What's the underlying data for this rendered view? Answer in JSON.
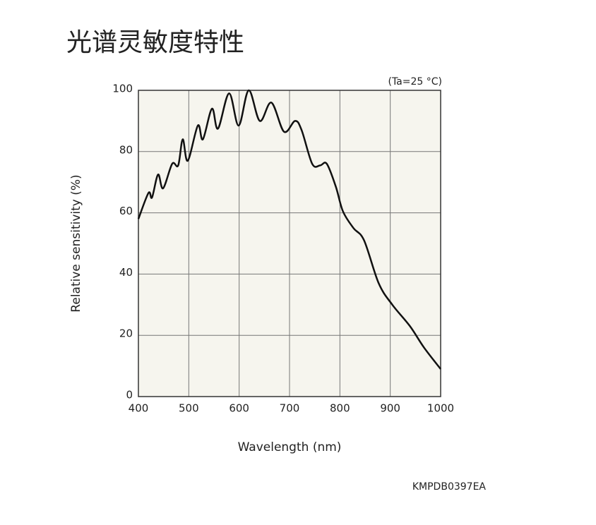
{
  "chart_data": {
    "type": "line",
    "title": "光谱灵敏度特性",
    "annotation": "(Ta=25 °C)",
    "code": "KMPDB0397EA",
    "xlabel": "Wavelength (nm)",
    "ylabel": "Relative sensitivity (%)",
    "x": [
      400,
      420,
      427,
      439,
      449,
      467,
      479,
      488,
      498,
      518,
      528,
      546,
      558,
      580,
      599,
      619,
      641,
      664,
      689,
      711,
      724,
      745,
      761,
      774,
      792,
      806,
      827,
      848,
      877,
      904,
      939,
      967,
      1000
    ],
    "series": [
      {
        "color": "#111111",
        "values": [
          58,
          66.5,
          65,
          72.5,
          68,
          76,
          75.5,
          84,
          77,
          88.5,
          84,
          94,
          87.5,
          99,
          88.5,
          100,
          90,
          96,
          86.5,
          90,
          87,
          76,
          75.5,
          76,
          68.5,
          60.5,
          55,
          51,
          37,
          30,
          23,
          16,
          9
        ]
      }
    ],
    "xlim": [
      400,
      1000
    ],
    "xticks": [
      400,
      500,
      600,
      700,
      800,
      900,
      1000
    ],
    "ylim": [
      0,
      100
    ],
    "yticks": [
      0,
      20,
      40,
      60,
      80,
      100
    ],
    "grid": true
  }
}
